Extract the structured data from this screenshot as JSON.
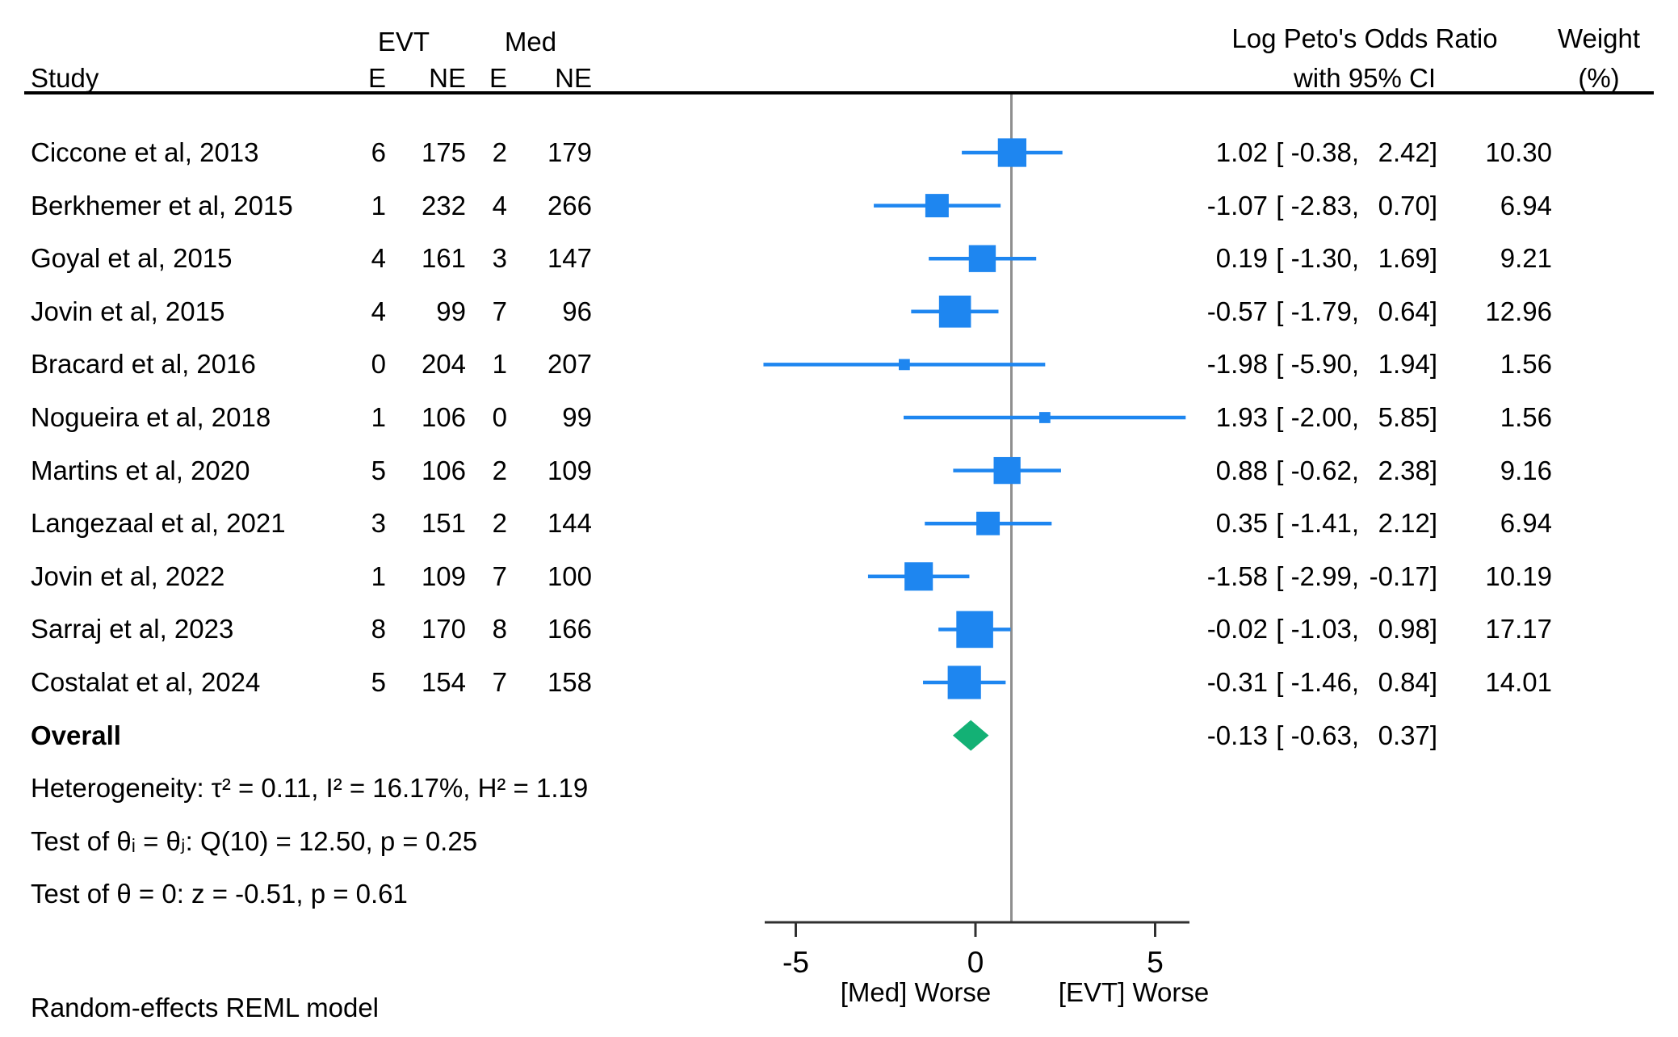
{
  "header": {
    "study": "Study",
    "group_evt": "EVT",
    "group_med": "Med",
    "col_e_evt": "E",
    "col_ne_evt": "NE",
    "col_e_med": "E",
    "col_ne_med": "NE",
    "effect_title_line1": "Log Peto's Odds Ratio",
    "effect_title_line2": "with 95% CI",
    "weight_title_line1": "Weight",
    "weight_title_line2": "(%)"
  },
  "chart_data": {
    "type": "scatter",
    "subtype": "forest-plot-meta-analysis",
    "title": "",
    "xlabel": "",
    "ylabel": "",
    "x_axis": {
      "ticks": [
        -5,
        0,
        5
      ],
      "tick_labels": [
        "-5",
        "0",
        "5"
      ],
      "range": [
        -5.9,
        5.95
      ],
      "label_left": "[Med] Worse",
      "label_right": "[EVT] Worse"
    },
    "ref_line_x": 1.0,
    "grid": false,
    "legend": false,
    "studies": [
      {
        "study": "Ciccone et al, 2013",
        "evt_e": 6,
        "evt_ne": 175,
        "med_e": 2,
        "med_ne": 179,
        "est": 1.02,
        "ci_low": -0.38,
        "ci_high": 2.42,
        "weight": 10.3,
        "est_text": "1.02",
        "ci_text_low": "[ -0.38,",
        "ci_text_high": "2.42]",
        "weight_text": "10.30"
      },
      {
        "study": "Berkhemer et al, 2015",
        "evt_e": 1,
        "evt_ne": 232,
        "med_e": 4,
        "med_ne": 266,
        "est": -1.07,
        "ci_low": -2.83,
        "ci_high": 0.7,
        "weight": 6.94,
        "est_text": "-1.07",
        "ci_text_low": "[ -2.83,",
        "ci_text_high": "0.70]",
        "weight_text": "6.94"
      },
      {
        "study": "Goyal et al, 2015",
        "evt_e": 4,
        "evt_ne": 161,
        "med_e": 3,
        "med_ne": 147,
        "est": 0.19,
        "ci_low": -1.3,
        "ci_high": 1.69,
        "weight": 9.21,
        "est_text": "0.19",
        "ci_text_low": "[ -1.30,",
        "ci_text_high": "1.69]",
        "weight_text": "9.21"
      },
      {
        "study": "Jovin et al, 2015",
        "evt_e": 4,
        "evt_ne": 99,
        "med_e": 7,
        "med_ne": 96,
        "est": -0.57,
        "ci_low": -1.79,
        "ci_high": 0.64,
        "weight": 12.96,
        "est_text": "-0.57",
        "ci_text_low": "[ -1.79,",
        "ci_text_high": "0.64]",
        "weight_text": "12.96"
      },
      {
        "study": "Bracard et al, 2016",
        "evt_e": 0,
        "evt_ne": 204,
        "med_e": 1,
        "med_ne": 207,
        "est": -1.98,
        "ci_low": -5.9,
        "ci_high": 1.94,
        "weight": 1.56,
        "est_text": "-1.98",
        "ci_text_low": "[ -5.90,",
        "ci_text_high": "1.94]",
        "weight_text": "1.56"
      },
      {
        "study": "Nogueira et al, 2018",
        "evt_e": 1,
        "evt_ne": 106,
        "med_e": 0,
        "med_ne": 99,
        "est": 1.93,
        "ci_low": -2.0,
        "ci_high": 5.85,
        "weight": 1.56,
        "est_text": "1.93",
        "ci_text_low": "[ -2.00,",
        "ci_text_high": "5.85]",
        "weight_text": "1.56"
      },
      {
        "study": "Martins et al, 2020",
        "evt_e": 5,
        "evt_ne": 106,
        "med_e": 2,
        "med_ne": 109,
        "est": 0.88,
        "ci_low": -0.62,
        "ci_high": 2.38,
        "weight": 9.16,
        "est_text": "0.88",
        "ci_text_low": "[ -0.62,",
        "ci_text_high": "2.38]",
        "weight_text": "9.16"
      },
      {
        "study": "Langezaal et al, 2021",
        "evt_e": 3,
        "evt_ne": 151,
        "med_e": 2,
        "med_ne": 144,
        "est": 0.35,
        "ci_low": -1.41,
        "ci_high": 2.12,
        "weight": 6.94,
        "est_text": "0.35",
        "ci_text_low": "[ -1.41,",
        "ci_text_high": "2.12]",
        "weight_text": "6.94"
      },
      {
        "study": "Jovin et al, 2022",
        "evt_e": 1,
        "evt_ne": 109,
        "med_e": 7,
        "med_ne": 100,
        "est": -1.58,
        "ci_low": -2.99,
        "ci_high": -0.17,
        "weight": 10.19,
        "est_text": "-1.58",
        "ci_text_low": "[ -2.99,",
        "ci_text_high": "-0.17]",
        "weight_text": "10.19"
      },
      {
        "study": "Sarraj et al, 2023",
        "evt_e": 8,
        "evt_ne": 170,
        "med_e": 8,
        "med_ne": 166,
        "est": -0.02,
        "ci_low": -1.03,
        "ci_high": 0.98,
        "weight": 17.17,
        "est_text": "-0.02",
        "ci_text_low": "[ -1.03,",
        "ci_text_high": "0.98]",
        "weight_text": "17.17"
      },
      {
        "study": "Costalat et al, 2024",
        "evt_e": 5,
        "evt_ne": 154,
        "med_e": 7,
        "med_ne": 158,
        "est": -0.31,
        "ci_low": -1.46,
        "ci_high": 0.84,
        "weight": 14.01,
        "est_text": "-0.31",
        "ci_text_low": "[ -1.46,",
        "ci_text_high": "0.84]",
        "weight_text": "14.01"
      }
    ],
    "overall": {
      "label": "Overall",
      "est": -0.13,
      "ci_low": -0.63,
      "ci_high": 0.37,
      "est_text": "-0.13",
      "ci_text_low": "[ -0.63,",
      "ci_text_high": "0.37]"
    }
  },
  "stats": {
    "heterogeneity": "Heterogeneity: τ² = 0.11, I² = 16.17%, H² = 1.19",
    "test_theta_ij": "Test of θᵢ = θⱼ: Q(10) = 12.50, p = 0.25",
    "test_theta_zero": "Test of θ = 0: z = -0.51, p = 0.61"
  },
  "footer": "Random-effects REML model",
  "colors": {
    "marker_blue": "#1E86F0",
    "diamond_green": "#13B175",
    "ref_line_gray": "#8F8F8F",
    "axis_color": "#303030",
    "text_color": "#000000"
  }
}
